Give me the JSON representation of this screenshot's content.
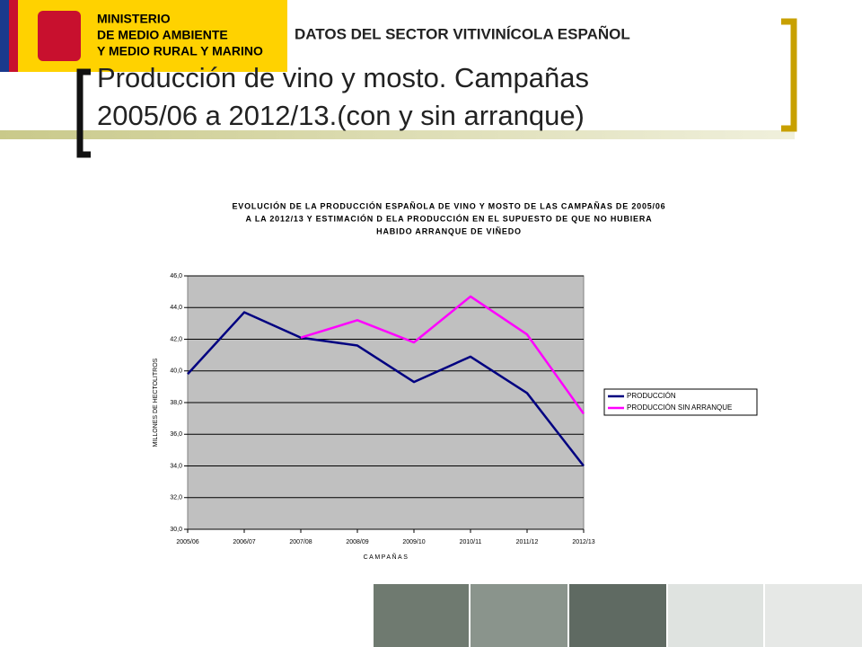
{
  "header": {
    "ministry": [
      "MINISTERIO",
      "DE MEDIO AMBIENTE",
      "Y MEDIO RURAL Y MARINO"
    ],
    "section": "DATOS DEL SECTOR VITIVINÍCOLA ESPAÑOL",
    "title": [
      "Producción de vino y mosto. Campañas",
      "2005/06 a 2012/13.(con y sin arranque)"
    ]
  },
  "chart_data": {
    "type": "line",
    "title": [
      "EVOLUCIÓN DE LA PRODUCCIÓN ESPAÑOLA DE VINO Y MOSTO DE LAS CAMPAÑAS DE 2005/06",
      "A LA 2012/13 Y ESTIMACIÓN D ELA PRODUCCIÓN EN EL SUPUESTO DE QUE NO HUBIERA",
      "HABIDO ARRANQUE DE VIÑEDO"
    ],
    "xlabel": "CAMPAÑAS",
    "ylabel": "MILLONES DE HECTOLITROS",
    "categories": [
      "2005/06",
      "2006/07",
      "2007/08",
      "2008/09",
      "2009/10",
      "2010/11",
      "2011/12",
      "2012/13"
    ],
    "series": [
      {
        "name": "PRODUCCIÓN",
        "color": "#000080",
        "values": [
          39.8,
          43.7,
          42.1,
          41.6,
          39.3,
          40.9,
          38.6,
          34.0
        ]
      },
      {
        "name": "PRODUCCIÓN SIN ARRANQUE",
        "color": "#ff00ff",
        "values": [
          null,
          null,
          42.1,
          43.2,
          41.8,
          44.7,
          42.3,
          37.3
        ]
      }
    ],
    "ylim": [
      30,
      46
    ],
    "yticks": [
      {
        "value": 30,
        "label": "30,0"
      },
      {
        "value": 32,
        "label": "32,0"
      },
      {
        "value": 34,
        "label": "34,0"
      },
      {
        "value": 36,
        "label": "36,0"
      },
      {
        "value": 38,
        "label": "38,0"
      },
      {
        "value": 40,
        "label": "40,0"
      },
      {
        "value": 42,
        "label": "42,0"
      },
      {
        "value": 44,
        "label": "44,0"
      },
      {
        "value": 46,
        "label": "46,0"
      }
    ],
    "grid": true,
    "legend": "right"
  }
}
